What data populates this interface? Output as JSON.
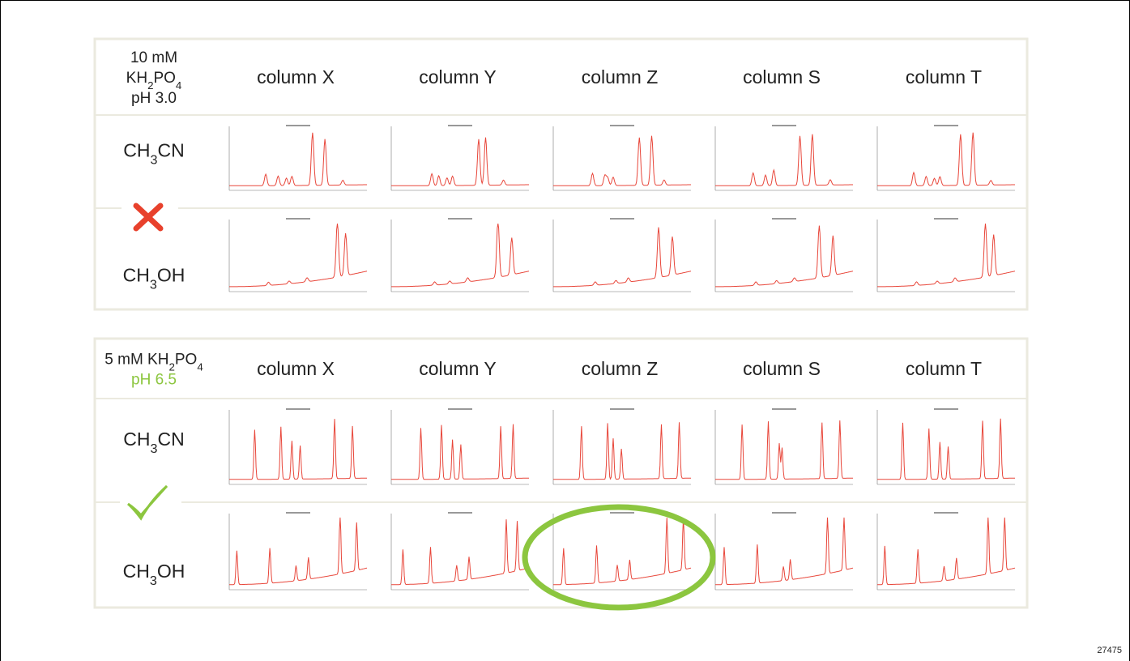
{
  "panels": [
    {
      "condition": [
        [
          "10 mM"
        ],
        [
          "KH",
          "2",
          "PO",
          "4"
        ],
        [
          "pH 3.0"
        ]
      ],
      "columns": [
        "column X",
        "column Y",
        "column Z",
        "column S",
        "column T"
      ],
      "solvents": [
        [
          "CH",
          "3",
          "CN"
        ],
        [
          "CH",
          "3",
          "OH"
        ]
      ]
    },
    {
      "condition": [
        [
          "5 mM KH",
          "2",
          "PO",
          "4"
        ],
        [
          "pH 6.5"
        ]
      ],
      "columns": [
        "column X",
        "column Y",
        "column Z",
        "column S",
        "column T"
      ],
      "solvents": [
        [
          "CH",
          "3",
          "CN"
        ],
        [
          "CH",
          "3",
          "OH"
        ]
      ]
    }
  ],
  "footnote": "27475"
}
